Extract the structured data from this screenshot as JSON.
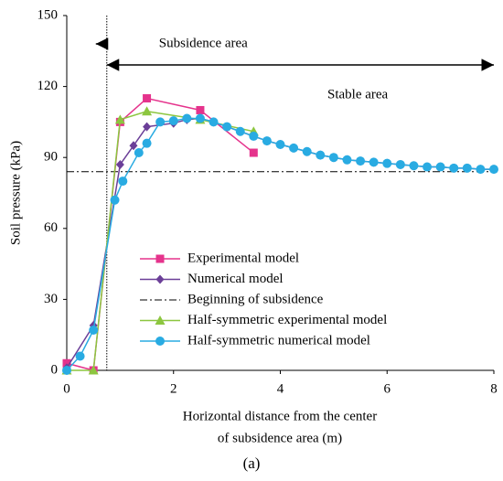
{
  "chart_data": {
    "type": "line",
    "ylabel": "Soil pressure (kPa)",
    "xlabel_lines": [
      "Horizontal distance from the center",
      "of subsidence area (m)"
    ],
    "caption": "(a)",
    "xlim": [
      0,
      8
    ],
    "xticks": [
      0,
      2,
      4,
      6,
      8
    ],
    "ylim": [
      0,
      150
    ],
    "yticks": [
      0,
      30,
      60,
      90,
      120,
      150
    ],
    "grid": false,
    "series": [
      {
        "name": "Experimental model",
        "color": "#e5338c",
        "marker": "square",
        "x": [
          0,
          0.5,
          1,
          1.5,
          2.5,
          3.5
        ],
        "values": [
          3,
          0,
          105,
          115,
          110,
          92
        ]
      },
      {
        "name": "Numerical model",
        "color": "#6b3f98",
        "marker": "diamond",
        "x": [
          0,
          0.5,
          1,
          1.25,
          1.5,
          2,
          2.25,
          2.5,
          2.75,
          3,
          3.25,
          3.5,
          3.75,
          4,
          4.25,
          4.5,
          4.75,
          5,
          5.25,
          5.5,
          5.75,
          6,
          6.25,
          6.5,
          6.75,
          7,
          7.25,
          7.5,
          7.75,
          8
        ],
        "values": [
          1,
          19,
          87,
          95,
          103,
          104.5,
          106,
          106.5,
          105,
          103,
          101,
          99,
          97,
          95.5,
          94,
          92.5,
          91,
          90,
          89,
          88.5,
          88,
          87.5,
          87,
          86.5,
          86,
          86,
          85.5,
          85.5,
          85,
          85
        ]
      },
      {
        "name": "Half-symmetric experimental model",
        "color": "#8cc63f",
        "marker": "triangle",
        "x": [
          0,
          0.5,
          1,
          1.5,
          2.5,
          3.5
        ],
        "values": [
          0,
          0,
          106,
          109.5,
          106,
          101
        ]
      },
      {
        "name": "Half-symmetric numerical model",
        "color": "#29abe2",
        "marker": "circle",
        "x": [
          0,
          0.25,
          0.5,
          0.9,
          1.05,
          1.35,
          1.5,
          1.75,
          2,
          2.25,
          2.5,
          2.75,
          3,
          3.25,
          3.5,
          3.75,
          4,
          4.25,
          4.5,
          4.75,
          5,
          5.25,
          5.5,
          5.75,
          6,
          6.25,
          6.5,
          6.75,
          7,
          7.25,
          7.5,
          7.75,
          8
        ],
        "values": [
          0,
          6,
          17,
          72,
          80,
          92,
          96,
          105,
          105.5,
          106.5,
          106.5,
          105,
          103,
          101,
          99,
          97,
          95.5,
          94,
          92.5,
          91,
          90,
          89,
          88.5,
          88,
          87.5,
          87,
          86.5,
          86,
          86,
          85.5,
          85.5,
          85,
          85
        ]
      }
    ],
    "hline": {
      "name": "Beginning of subsidence",
      "value": 84,
      "color": "#000000"
    },
    "vline": {
      "value": 0.75
    },
    "annotations": [
      "Subsidence area",
      "Stable area"
    ]
  }
}
